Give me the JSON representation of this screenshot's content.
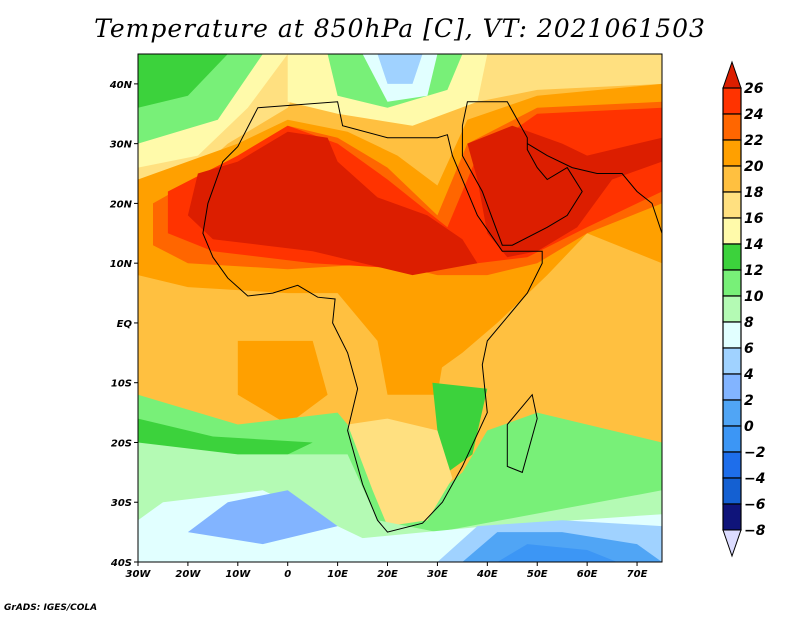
{
  "title": "Temperature at 850hPa [C], VT: 2021061503",
  "credit": "GrADS: IGES/COLA",
  "map": {
    "lon_range": [
      -30,
      75
    ],
    "lat_range": [
      -40,
      45
    ],
    "lon_labels": [
      "30W",
      "20W",
      "10W",
      "0",
      "10E",
      "20E",
      "30E",
      "40E",
      "50E",
      "60E",
      "70E"
    ],
    "lat_labels": [
      "40N",
      "30N",
      "20N",
      "10N",
      "EQ",
      "10S",
      "20S",
      "30S",
      "40S"
    ]
  },
  "colorbar": {
    "labels": [
      "26",
      "24",
      "22",
      "20",
      "18",
      "16",
      "14",
      "12",
      "10",
      "8",
      "6",
      "4",
      "2",
      "0",
      "-2",
      "-4",
      "-6",
      "-8"
    ],
    "colors": [
      "#ff3300",
      "#ff6600",
      "#ffa000",
      "#ffc040",
      "#ffe080",
      "#fffaaa",
      "#3cd23c",
      "#78f078",
      "#b4fab4",
      "#e1ffff",
      "#a0d2ff",
      "#82b4ff",
      "#50a5f5",
      "#3c96f5",
      "#1e6eeb",
      "#1460d2",
      "#0f147a"
    ],
    "over_color": "#dc1e00",
    "under_color": "#dcdcff"
  }
}
